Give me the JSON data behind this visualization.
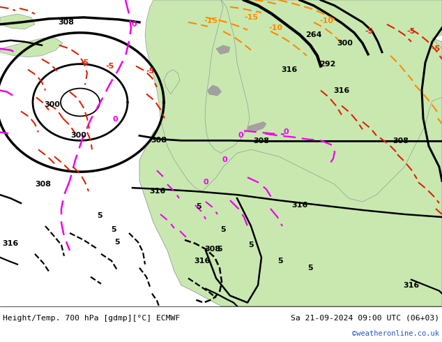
{
  "title_left": "Height/Temp. 700 hPa [gdmp][°C] ECMWF",
  "title_right": "Sa 21-09-2024 09:00 UTC (06+03)",
  "credit": "©weatheronline.co.uk",
  "fig_width": 6.34,
  "fig_height": 4.9,
  "dpi": 100,
  "bg_color": "#d8d8d8",
  "land_color": "#c8e8b0",
  "gray_color": "#a8a8a8",
  "white_color": "#ffffff"
}
